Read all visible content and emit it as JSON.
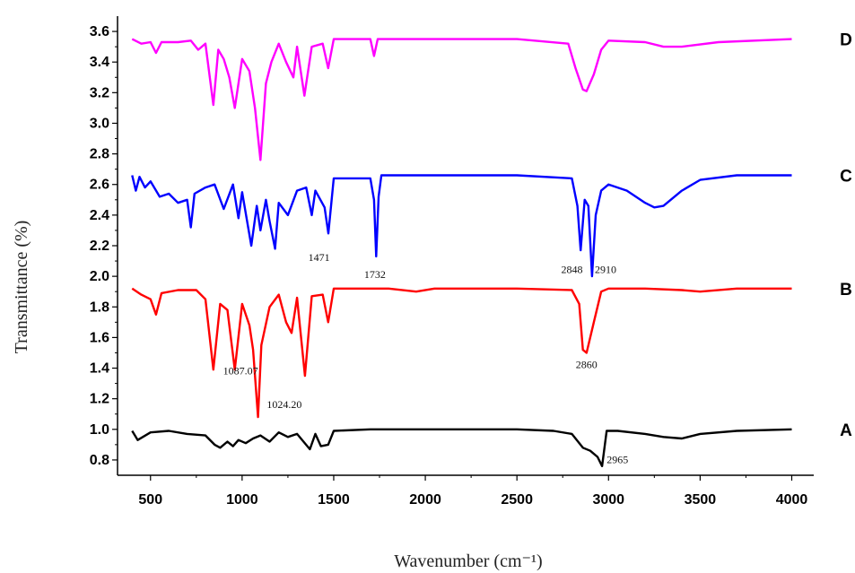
{
  "chart_data": {
    "type": "line",
    "xlabel": "Wavenumber (cm⁻¹)",
    "ylabel": "Transmittance (%)",
    "xlim": [
      320,
      4120
    ],
    "ylim": [
      0.7,
      3.7
    ],
    "x_ticks": [
      500,
      1000,
      1500,
      2000,
      2500,
      3000,
      3500,
      4000
    ],
    "y_ticks": [
      0.8,
      1.0,
      1.2,
      1.4,
      1.6,
      1.8,
      2.0,
      2.2,
      2.4,
      2.6,
      2.8,
      3.0,
      3.2,
      3.4,
      3.6
    ],
    "series": [
      {
        "name": "A",
        "color": "#000000",
        "x": [
          400,
          430,
          500,
          600,
          700,
          800,
          850,
          880,
          920,
          950,
          980,
          1020,
          1060,
          1100,
          1150,
          1200,
          1250,
          1300,
          1370,
          1400,
          1430,
          1470,
          1500,
          1700,
          2000,
          2500,
          2700,
          2800,
          2860,
          2900,
          2940,
          2965,
          2990,
          3050,
          3200,
          3300,
          3400,
          3500,
          3700,
          4000
        ],
        "y": [
          0.99,
          0.93,
          0.98,
          0.99,
          0.97,
          0.96,
          0.9,
          0.88,
          0.92,
          0.89,
          0.93,
          0.91,
          0.94,
          0.96,
          0.92,
          0.98,
          0.95,
          0.97,
          0.87,
          0.97,
          0.89,
          0.9,
          0.99,
          1.0,
          1.0,
          1.0,
          0.99,
          0.97,
          0.88,
          0.86,
          0.82,
          0.76,
          0.99,
          0.99,
          0.97,
          0.95,
          0.94,
          0.97,
          0.99,
          1.0
        ]
      },
      {
        "name": "B",
        "color": "#ff0000",
        "x": [
          400,
          450,
          500,
          530,
          560,
          650,
          750,
          800,
          843,
          880,
          920,
          960,
          1000,
          1040,
          1060,
          1087,
          1105,
          1150,
          1200,
          1240,
          1270,
          1300,
          1343,
          1380,
          1440,
          1470,
          1500,
          1700,
          1800,
          1950,
          2050,
          2500,
          2800,
          2840,
          2860,
          2880,
          2920,
          2960,
          3000,
          3200,
          3400,
          3500,
          3700,
          4000
        ],
        "y": [
          1.92,
          1.88,
          1.85,
          1.75,
          1.89,
          1.91,
          1.91,
          1.85,
          1.39,
          1.82,
          1.78,
          1.39,
          1.82,
          1.68,
          1.52,
          1.08,
          1.55,
          1.8,
          1.88,
          1.7,
          1.63,
          1.86,
          1.35,
          1.87,
          1.88,
          1.7,
          1.92,
          1.92,
          1.92,
          1.9,
          1.92,
          1.92,
          1.91,
          1.82,
          1.52,
          1.5,
          1.7,
          1.9,
          1.92,
          1.92,
          1.91,
          1.9,
          1.92,
          1.92
        ]
      },
      {
        "name": "C",
        "color": "#0000ff",
        "x": [
          400,
          420,
          440,
          470,
          500,
          550,
          600,
          650,
          700,
          720,
          740,
          800,
          850,
          900,
          950,
          980,
          1000,
          1050,
          1080,
          1100,
          1130,
          1150,
          1180,
          1200,
          1250,
          1300,
          1350,
          1380,
          1400,
          1450,
          1471,
          1500,
          1700,
          1720,
          1732,
          1745,
          1760,
          1800,
          2000,
          2500,
          2800,
          2830,
          2848,
          2870,
          2890,
          2910,
          2930,
          2960,
          3000,
          3100,
          3200,
          3250,
          3300,
          3400,
          3500,
          3700,
          4000
        ],
        "y": [
          2.66,
          2.56,
          2.65,
          2.58,
          2.62,
          2.52,
          2.54,
          2.48,
          2.5,
          2.32,
          2.54,
          2.58,
          2.6,
          2.44,
          2.6,
          2.38,
          2.55,
          2.2,
          2.46,
          2.3,
          2.5,
          2.36,
          2.18,
          2.48,
          2.4,
          2.56,
          2.58,
          2.4,
          2.56,
          2.45,
          2.28,
          2.64,
          2.64,
          2.5,
          2.13,
          2.52,
          2.66,
          2.66,
          2.66,
          2.66,
          2.64,
          2.46,
          2.17,
          2.5,
          2.46,
          2.0,
          2.4,
          2.56,
          2.6,
          2.56,
          2.48,
          2.45,
          2.46,
          2.56,
          2.63,
          2.66,
          2.66
        ]
      },
      {
        "name": "D",
        "color": "#ff00ff",
        "x": [
          400,
          450,
          500,
          530,
          560,
          650,
          720,
          760,
          800,
          843,
          870,
          900,
          930,
          960,
          1000,
          1040,
          1070,
          1100,
          1130,
          1160,
          1200,
          1240,
          1280,
          1300,
          1340,
          1380,
          1440,
          1470,
          1500,
          1700,
          1720,
          1740,
          1760,
          1800,
          2000,
          2500,
          2780,
          2820,
          2860,
          2880,
          2920,
          2960,
          3000,
          3200,
          3300,
          3400,
          3600,
          4000
        ],
        "y": [
          3.55,
          3.52,
          3.53,
          3.46,
          3.53,
          3.53,
          3.54,
          3.48,
          3.52,
          3.12,
          3.48,
          3.42,
          3.3,
          3.1,
          3.42,
          3.34,
          3.1,
          2.76,
          3.26,
          3.4,
          3.52,
          3.4,
          3.3,
          3.5,
          3.18,
          3.5,
          3.52,
          3.36,
          3.55,
          3.55,
          3.44,
          3.55,
          3.55,
          3.55,
          3.55,
          3.55,
          3.52,
          3.36,
          3.22,
          3.21,
          3.32,
          3.48,
          3.54,
          3.53,
          3.5,
          3.5,
          3.53,
          3.55
        ]
      }
    ],
    "annotations": [
      {
        "text": "1087.07",
        "x": 1087,
        "y": 1.36,
        "anchor": "end"
      },
      {
        "text": "1024.20",
        "x": 1135,
        "y": 1.14,
        "anchor": "start"
      },
      {
        "text": "2860",
        "x": 2880,
        "y": 1.4,
        "anchor": "middle"
      },
      {
        "text": "2965",
        "x": 2990,
        "y": 0.78,
        "anchor": "start"
      },
      {
        "text": "1471",
        "x": 1420,
        "y": 2.1,
        "anchor": "middle"
      },
      {
        "text": "1732",
        "x": 1725,
        "y": 1.99,
        "anchor": "middle"
      },
      {
        "text": "2848",
        "x": 2800,
        "y": 2.02,
        "anchor": "middle"
      },
      {
        "text": "2910",
        "x": 2925,
        "y": 2.02,
        "anchor": "start"
      }
    ],
    "series_labels": [
      "A",
      "B",
      "C",
      "D"
    ],
    "grid": false,
    "legend": "right"
  }
}
